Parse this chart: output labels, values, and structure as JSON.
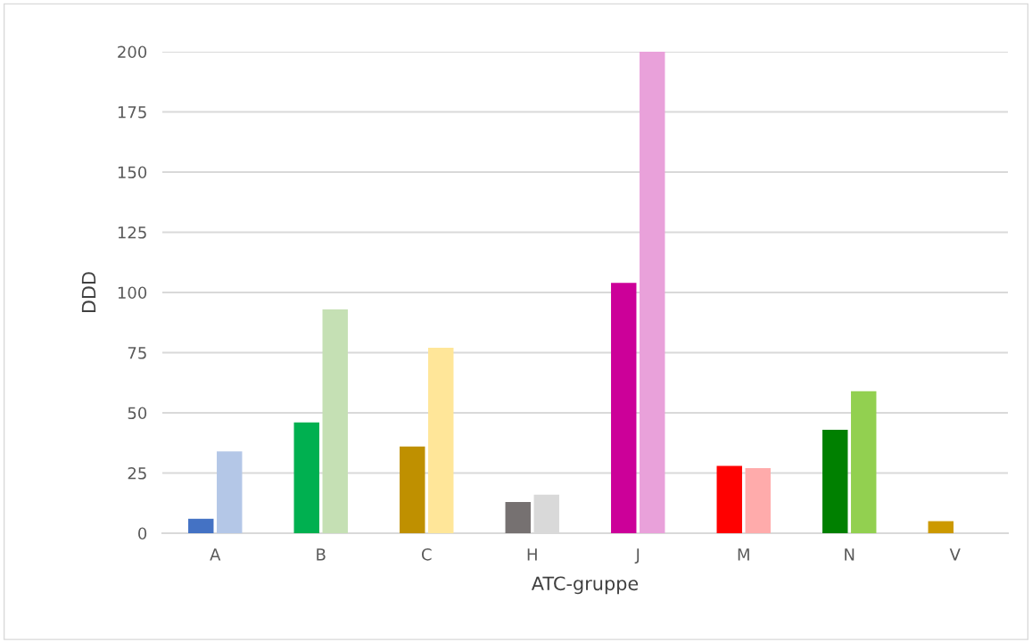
{
  "chart_data": {
    "type": "bar",
    "xlabel": "ATC-gruppe",
    "ylabel": "DDD",
    "categories": [
      "A",
      "B",
      "C",
      "H",
      "J",
      "M",
      "N",
      "V"
    ],
    "series": [
      {
        "colors": [
          "#4472c4",
          "#00b050",
          "#bf9000",
          "#767171",
          "#cc0099",
          "#ff0000",
          "#008000",
          "#cc9900"
        ],
        "values": [
          6,
          46,
          36,
          13,
          104,
          28,
          43,
          5
        ]
      },
      {
        "colors": [
          "#b4c7e7",
          "#c5e0b4",
          "#ffe699",
          "#d9d9d9",
          "#e9a1da",
          "#ffabab",
          "#92d050",
          null
        ],
        "values": [
          34,
          93,
          77,
          16,
          200,
          27,
          59,
          null
        ]
      }
    ],
    "ylim": [
      0,
      200
    ],
    "yticks": [
      0,
      25,
      50,
      75,
      100,
      125,
      150,
      175,
      200
    ],
    "grid": "y",
    "legend": false
  }
}
